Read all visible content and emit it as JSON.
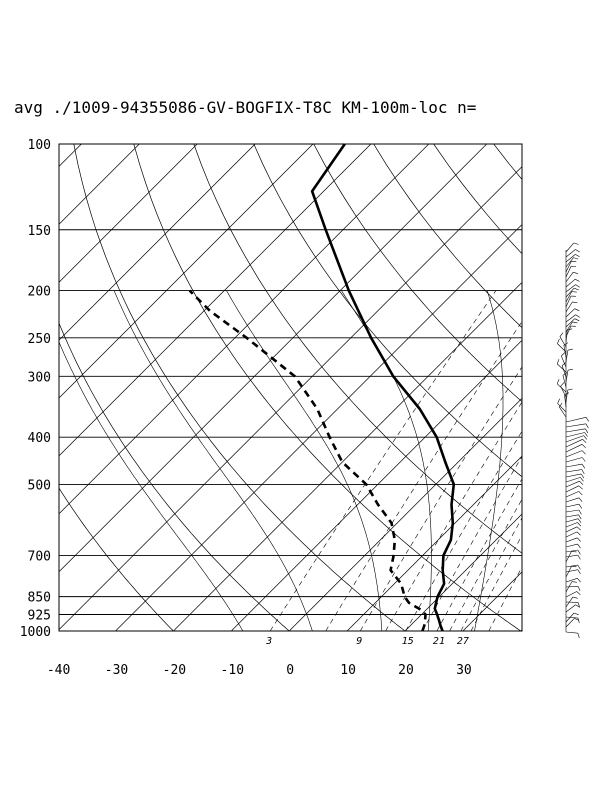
{
  "chart_data": {
    "type": "skew-t",
    "title": "avg ./1009-94355086-GV-BOGFIX-T8C KM-100m-loc n=",
    "pressure_ticks": [
      1000,
      925,
      850,
      700,
      500,
      400,
      300,
      250,
      200,
      150,
      100
    ],
    "pressure_tick_labels": [
      "1000",
      "925",
      "850",
      "700",
      "500",
      "400",
      "300",
      "250",
      "200",
      "150",
      "100"
    ],
    "temperature_ticks": [
      -40,
      -30,
      -20,
      -10,
      0,
      10,
      20,
      30
    ],
    "temperature_tick_labels": [
      "-40",
      "-30",
      "-20",
      "-10",
      "0",
      "10",
      "20",
      "30"
    ],
    "xlim": [
      -40,
      40
    ],
    "ylim": [
      1000,
      100
    ],
    "mixing_ratio_labels": [
      "3",
      "9",
      "15",
      "21",
      "27"
    ],
    "mixing_ratio_values": [
      3,
      9,
      15,
      21,
      27
    ],
    "series": [
      {
        "style": "solid-thick",
        "points": [
          [
            1000,
            26.5
          ],
          [
            975,
            25.2
          ],
          [
            950,
            24.0
          ],
          [
            925,
            22.7
          ],
          [
            900,
            21.3
          ],
          [
            875,
            20.5
          ],
          [
            850,
            19.7
          ],
          [
            800,
            18.6
          ],
          [
            750,
            16.0
          ],
          [
            700,
            13.6
          ],
          [
            650,
            12.2
          ],
          [
            600,
            9.6
          ],
          [
            550,
            6.2
          ],
          [
            500,
            3.1
          ],
          [
            450,
            -2.2
          ],
          [
            400,
            -8.0
          ],
          [
            350,
            -15.8
          ],
          [
            300,
            -26.0
          ],
          [
            250,
            -36.5
          ],
          [
            200,
            -48.5
          ],
          [
            150,
            -63.0
          ],
          [
            125,
            -72.0
          ],
          [
            100,
            -74.5
          ]
        ]
      },
      {
        "style": "dashed-thick",
        "points": [
          [
            1000,
            23.0
          ],
          [
            975,
            22.4
          ],
          [
            950,
            21.6
          ],
          [
            925,
            20.7
          ],
          [
            900,
            18.6
          ],
          [
            875,
            15.8
          ],
          [
            850,
            14.0
          ],
          [
            800,
            11.2
          ],
          [
            750,
            7.0
          ],
          [
            700,
            5.0
          ],
          [
            650,
            2.5
          ],
          [
            600,
            -1.0
          ],
          [
            550,
            -6.5
          ],
          [
            500,
            -12.0
          ],
          [
            450,
            -20.0
          ],
          [
            400,
            -26.5
          ],
          [
            350,
            -33.5
          ],
          [
            300,
            -43.0
          ],
          [
            250,
            -58.0
          ],
          [
            220,
            -69.0
          ],
          [
            200,
            -76.0
          ]
        ]
      }
    ],
    "grid": true,
    "wind_barbs": true
  }
}
